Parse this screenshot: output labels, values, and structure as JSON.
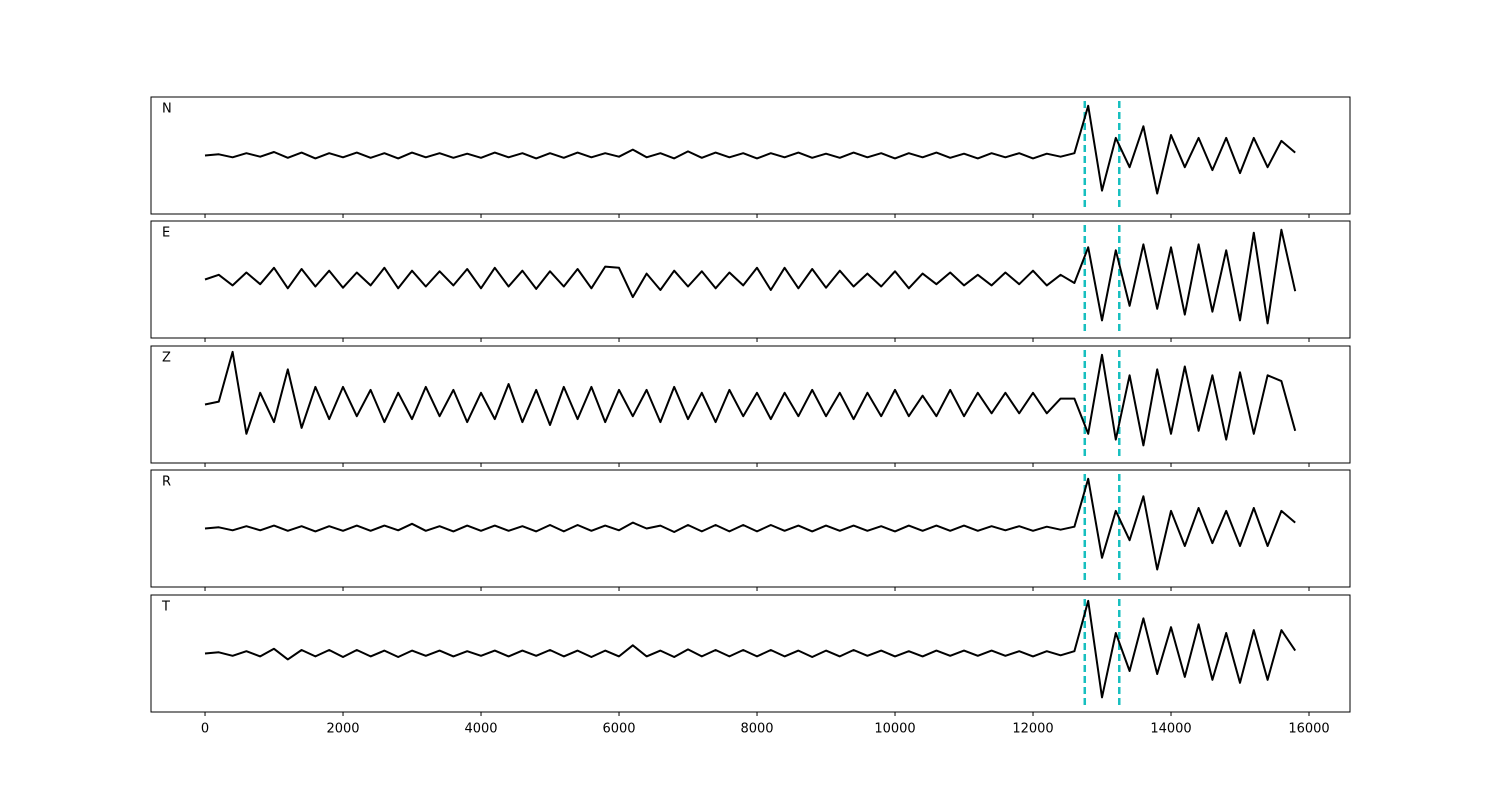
{
  "chart_data": {
    "type": "line",
    "layout": "stacked",
    "x": [
      0,
      200,
      400,
      600,
      800,
      1000,
      1200,
      1400,
      1600,
      1800,
      2000,
      2200,
      2400,
      2600,
      2800,
      3000,
      3200,
      3400,
      3600,
      3800,
      4000,
      4200,
      4400,
      4600,
      4800,
      5000,
      5200,
      5400,
      5600,
      5800,
      6000,
      6200,
      6400,
      6600,
      6800,
      7000,
      7200,
      7400,
      7600,
      7800,
      8000,
      8200,
      8400,
      8600,
      8800,
      9000,
      9200,
      9400,
      9600,
      9800,
      10000,
      10200,
      10400,
      10600,
      10800,
      11000,
      11200,
      11400,
      11600,
      11800,
      12000,
      12200,
      12400,
      12600,
      12800,
      13000,
      13200,
      13400,
      13600,
      13800,
      14000,
      14200,
      14400,
      14600,
      14800,
      15000,
      15200,
      15400,
      15600,
      15800
    ],
    "series": [
      {
        "name": "N",
        "color": "#000000",
        "values": [
          0,
          0.02,
          -0.03,
          0.04,
          -0.02,
          0.06,
          -0.04,
          0.05,
          -0.05,
          0.04,
          -0.03,
          0.05,
          -0.04,
          0.04,
          -0.05,
          0.05,
          -0.03,
          0.04,
          -0.04,
          0.03,
          -0.04,
          0.05,
          -0.03,
          0.04,
          -0.05,
          0.04,
          -0.04,
          0.05,
          -0.03,
          0.04,
          -0.02,
          0.1,
          -0.03,
          0.04,
          -0.05,
          0.07,
          -0.04,
          0.05,
          -0.03,
          0.04,
          -0.05,
          0.04,
          -0.03,
          0.05,
          -0.04,
          0.03,
          -0.04,
          0.05,
          -0.03,
          0.04,
          -0.05,
          0.04,
          -0.03,
          0.05,
          -0.04,
          0.03,
          -0.05,
          0.04,
          -0.03,
          0.04,
          -0.05,
          0.03,
          -0.02,
          0.04,
          0.85,
          -0.6,
          0.3,
          -0.2,
          0.5,
          -0.65,
          0.35,
          -0.2,
          0.3,
          -0.25,
          0.3,
          -0.3,
          0.3,
          -0.2,
          0.25,
          0.05
        ]
      },
      {
        "name": "E",
        "color": "#000000",
        "values": [
          0,
          0.08,
          -0.1,
          0.12,
          -0.08,
          0.2,
          -0.15,
          0.18,
          -0.12,
          0.15,
          -0.14,
          0.12,
          -0.1,
          0.2,
          -0.15,
          0.15,
          -0.12,
          0.14,
          -0.1,
          0.18,
          -0.15,
          0.2,
          -0.12,
          0.15,
          -0.16,
          0.14,
          -0.12,
          0.18,
          -0.15,
          0.22,
          0.2,
          -0.3,
          0.1,
          -0.18,
          0.15,
          -0.12,
          0.14,
          -0.15,
          0.12,
          -0.1,
          0.2,
          -0.18,
          0.2,
          -0.15,
          0.18,
          -0.14,
          0.15,
          -0.12,
          0.1,
          -0.12,
          0.14,
          -0.15,
          0.1,
          -0.08,
          0.12,
          -0.1,
          0.08,
          -0.1,
          0.12,
          -0.08,
          0.15,
          -0.1,
          0.08,
          -0.06,
          0.55,
          -0.7,
          0.5,
          -0.45,
          0.6,
          -0.5,
          0.55,
          -0.6,
          0.6,
          -0.55,
          0.5,
          -0.7,
          0.8,
          -0.75,
          0.85,
          -0.2
        ]
      },
      {
        "name": "Z",
        "color": "#000000",
        "values": [
          0,
          0.05,
          0.9,
          -0.5,
          0.2,
          -0.3,
          0.6,
          -0.4,
          0.3,
          -0.25,
          0.3,
          -0.2,
          0.25,
          -0.3,
          0.2,
          -0.25,
          0.3,
          -0.2,
          0.25,
          -0.3,
          0.2,
          -0.25,
          0.35,
          -0.3,
          0.25,
          -0.35,
          0.3,
          -0.25,
          0.3,
          -0.3,
          0.25,
          -0.2,
          0.25,
          -0.3,
          0.3,
          -0.25,
          0.2,
          -0.3,
          0.25,
          -0.2,
          0.2,
          -0.25,
          0.2,
          -0.2,
          0.25,
          -0.2,
          0.2,
          -0.25,
          0.2,
          -0.2,
          0.25,
          -0.2,
          0.15,
          -0.2,
          0.25,
          -0.2,
          0.2,
          -0.15,
          0.2,
          -0.15,
          0.2,
          -0.15,
          0.1,
          0.1,
          -0.5,
          0.85,
          -0.6,
          0.5,
          -0.7,
          0.6,
          -0.5,
          0.65,
          -0.45,
          0.5,
          -0.6,
          0.55,
          -0.5,
          0.5,
          0.4,
          -0.45
        ]
      },
      {
        "name": "R",
        "color": "#000000",
        "values": [
          0,
          0.02,
          -0.03,
          0.04,
          -0.03,
          0.05,
          -0.04,
          0.04,
          -0.05,
          0.04,
          -0.04,
          0.05,
          -0.04,
          0.05,
          -0.03,
          0.08,
          -0.04,
          0.04,
          -0.05,
          0.05,
          -0.04,
          0.05,
          -0.04,
          0.04,
          -0.05,
          0.06,
          -0.05,
          0.06,
          -0.04,
          0.05,
          -0.03,
          0.1,
          0,
          0.05,
          -0.06,
          0.06,
          -0.05,
          0.06,
          -0.05,
          0.06,
          -0.05,
          0.06,
          -0.04,
          0.05,
          -0.05,
          0.05,
          -0.04,
          0.05,
          -0.04,
          0.04,
          -0.05,
          0.05,
          -0.04,
          0.05,
          -0.04,
          0.05,
          -0.04,
          0.04,
          -0.03,
          0.04,
          -0.04,
          0.03,
          -0.02,
          0.03,
          0.85,
          -0.5,
          0.3,
          -0.2,
          0.55,
          -0.7,
          0.3,
          -0.3,
          0.35,
          -0.25,
          0.3,
          -0.3,
          0.35,
          -0.3,
          0.3,
          0.1
        ]
      },
      {
        "name": "T",
        "color": "#000000",
        "values": [
          0,
          0.02,
          -0.04,
          0.04,
          -0.05,
          0.08,
          -0.1,
          0.06,
          -0.05,
          0.06,
          -0.06,
          0.06,
          -0.05,
          0.05,
          -0.06,
          0.05,
          -0.04,
          0.05,
          -0.05,
          0.04,
          -0.04,
          0.05,
          -0.05,
          0.05,
          -0.04,
          0.06,
          -0.05,
          0.05,
          -0.06,
          0.05,
          -0.05,
          0.14,
          -0.05,
          0.05,
          -0.06,
          0.07,
          -0.05,
          0.06,
          -0.05,
          0.06,
          -0.05,
          0.06,
          -0.05,
          0.05,
          -0.06,
          0.05,
          -0.05,
          0.06,
          -0.04,
          0.05,
          -0.05,
          0.04,
          -0.05,
          0.05,
          -0.04,
          0.05,
          -0.04,
          0.05,
          -0.04,
          0.04,
          -0.05,
          0.04,
          -0.03,
          0.04,
          0.9,
          -0.75,
          0.35,
          -0.3,
          0.6,
          -0.35,
          0.45,
          -0.4,
          0.5,
          -0.45,
          0.35,
          -0.5,
          0.4,
          -0.45,
          0.4,
          0.05
        ]
      }
    ],
    "ylim": [
      -1,
      1
    ],
    "xlim": [
      -783,
      16594
    ],
    "xticks": [
      0,
      2000,
      4000,
      6000,
      8000,
      10000,
      12000,
      14000,
      16000
    ],
    "vlines": [
      12750,
      13250
    ],
    "vline_color": "#17bfbf"
  }
}
